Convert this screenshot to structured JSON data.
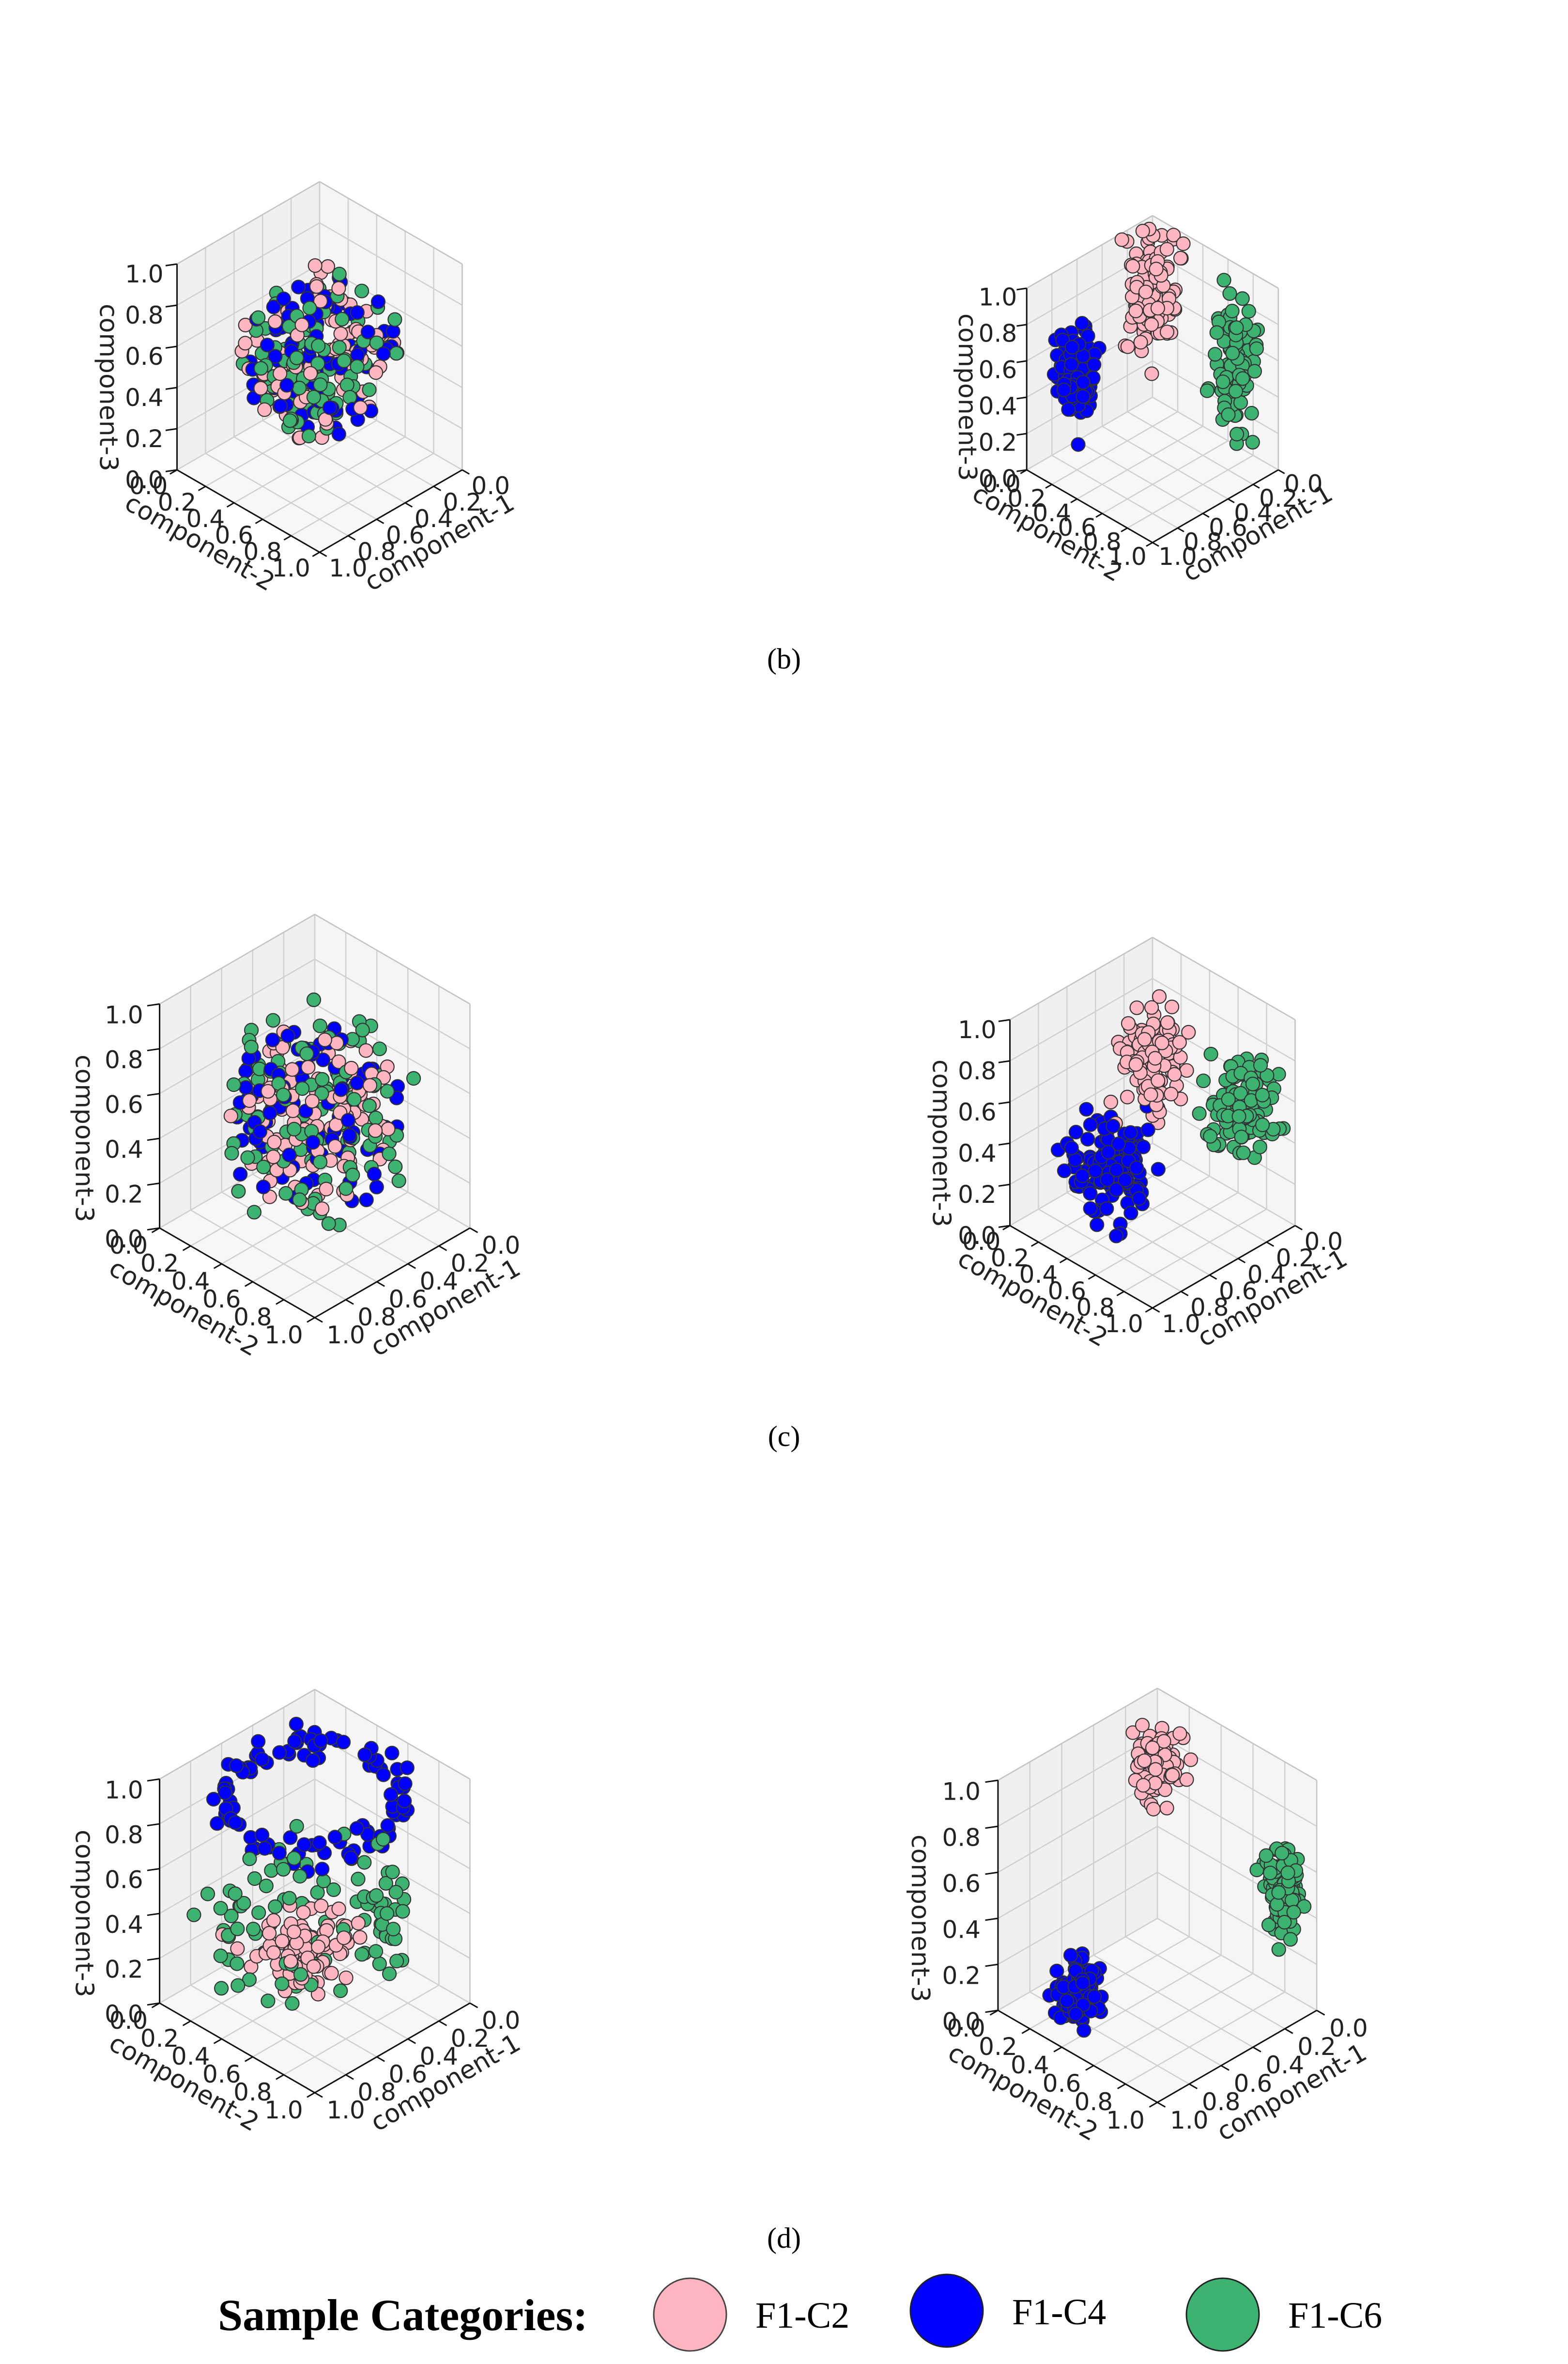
{
  "legend": {
    "title": "Sample Categories:",
    "items": [
      {
        "label": "F1-C2",
        "color": "#ffb6c1"
      },
      {
        "label": "F1-C4",
        "color": "#0000ff"
      },
      {
        "label": "F1-C6",
        "color": "#3cb371"
      }
    ]
  },
  "captions": {
    "b": "(b)",
    "c": "(c)",
    "d": "(d)"
  },
  "axis_text": {
    "x": "component-1",
    "y": "component-2",
    "z": "component-3",
    "ticks": [
      "0.0",
      "0.2",
      "0.4",
      "0.6",
      "0.8",
      "1.0"
    ]
  },
  "chart_data": [
    {
      "type": "scatter",
      "panel": "b-left",
      "xlabel": "component-1",
      "ylabel": "component-2",
      "zlabel": "component-3",
      "xlim": [
        0,
        1
      ],
      "ylim": [
        0,
        1
      ],
      "zlim": [
        0,
        1
      ],
      "series": [
        {
          "name": "F1-C2",
          "color": "#ffb6c1",
          "n": 90,
          "cluster": {
            "shape": "sphere",
            "center": [
              0.5,
              0.5,
              0.55
            ],
            "radius": 0.42
          }
        },
        {
          "name": "F1-C4",
          "color": "#0000ff",
          "n": 90,
          "cluster": {
            "shape": "sphere",
            "center": [
              0.5,
              0.5,
              0.55
            ],
            "radius": 0.42
          }
        },
        {
          "name": "F1-C6",
          "color": "#3cb371",
          "n": 90,
          "cluster": {
            "shape": "sphere",
            "center": [
              0.5,
              0.5,
              0.55
            ],
            "radius": 0.42
          }
        }
      ]
    },
    {
      "type": "scatter",
      "panel": "b-right",
      "xlabel": "component-1",
      "ylabel": "component-2",
      "zlabel": "component-3",
      "xlim": [
        0,
        1
      ],
      "ylim": [
        0,
        1
      ],
      "zlim": [
        0,
        1
      ],
      "series": [
        {
          "name": "F1-C2",
          "color": "#ffb6c1",
          "n": 110,
          "cluster": {
            "shape": "blob",
            "center": [
              0.15,
              0.15,
              0.7
            ],
            "spread": [
              0.07,
              0.07,
              0.17
            ]
          }
        },
        {
          "name": "F1-C4",
          "color": "#0000ff",
          "n": 100,
          "cluster": {
            "shape": "blob",
            "center": [
              0.75,
              0.15,
              0.5
            ],
            "spread": [
              0.06,
              0.06,
              0.12
            ]
          }
        },
        {
          "name": "F1-C6",
          "color": "#3cb371",
          "n": 100,
          "cluster": {
            "shape": "blob",
            "center": [
              0.15,
              0.8,
              0.55
            ],
            "spread": [
              0.06,
              0.06,
              0.17
            ]
          }
        }
      ]
    },
    {
      "type": "scatter",
      "panel": "c-left",
      "xlabel": "component-1",
      "ylabel": "component-2",
      "zlabel": "component-3",
      "xlim": [
        0,
        1
      ],
      "ylim": [
        0,
        1
      ],
      "zlim": [
        0,
        1
      ],
      "series": [
        {
          "name": "F1-C2",
          "color": "#ffb6c1",
          "n": 100,
          "cluster": {
            "shape": "sphere",
            "center": [
              0.45,
              0.45,
              0.45
            ],
            "radius": 0.42
          }
        },
        {
          "name": "F1-C4",
          "color": "#0000ff",
          "n": 95,
          "cluster": {
            "shape": "sphere",
            "center": [
              0.45,
              0.45,
              0.45
            ],
            "radius": 0.42
          }
        },
        {
          "name": "F1-C6",
          "color": "#3cb371",
          "n": 110,
          "cluster": {
            "shape": "sphere",
            "center": [
              0.45,
              0.45,
              0.45
            ],
            "radius": 0.5
          }
        }
      ]
    },
    {
      "type": "scatter",
      "panel": "c-right",
      "xlabel": "component-1",
      "ylabel": "component-2",
      "zlabel": "component-3",
      "xlim": [
        0,
        1
      ],
      "ylim": [
        0,
        1
      ],
      "zlim": [
        0,
        1
      ],
      "series": [
        {
          "name": "F1-C2",
          "color": "#ffb6c1",
          "n": 110,
          "cluster": {
            "shape": "blob",
            "center": [
              0.25,
              0.25,
              0.6
            ],
            "spread": [
              0.08,
              0.08,
              0.13
            ]
          }
        },
        {
          "name": "F1-C4",
          "color": "#0000ff",
          "n": 130,
          "cluster": {
            "shape": "blob",
            "center": [
              0.7,
              0.4,
              0.3
            ],
            "spread": [
              0.1,
              0.1,
              0.1
            ]
          }
        },
        {
          "name": "F1-C6",
          "color": "#3cb371",
          "n": 110,
          "cluster": {
            "shape": "blob",
            "center": [
              0.2,
              0.85,
              0.6
            ],
            "spread": [
              0.1,
              0.07,
              0.12
            ]
          }
        }
      ]
    },
    {
      "type": "scatter",
      "panel": "d-left",
      "xlabel": "component-1",
      "ylabel": "component-2",
      "zlabel": "component-3",
      "xlim": [
        0,
        1
      ],
      "ylim": [
        0,
        1
      ],
      "zlim": [
        0,
        1
      ],
      "series": [
        {
          "name": "F1-C2",
          "color": "#ffb6c1",
          "n": 100,
          "cluster": {
            "shape": "blob",
            "center": [
              0.5,
              0.45,
              0.22
            ],
            "spread": [
              0.12,
              0.12,
              0.06
            ]
          }
        },
        {
          "name": "F1-C4",
          "color": "#0000ff",
          "n": 110,
          "cluster": {
            "shape": "ring",
            "center": [
              0.5,
              0.5,
              0.92
            ],
            "radius": 0.42,
            "spread": 0.04
          }
        },
        {
          "name": "F1-C6",
          "color": "#3cb371",
          "n": 100,
          "cluster": {
            "shape": "ring",
            "center": [
              0.5,
              0.5,
              0.4
            ],
            "radius": 0.38,
            "spread": 0.12
          }
        }
      ]
    },
    {
      "type": "scatter",
      "panel": "d-right",
      "xlabel": "component-1",
      "ylabel": "component-2",
      "zlabel": "component-3",
      "xlim": [
        0,
        1
      ],
      "ylim": [
        0,
        1
      ],
      "zlim": [
        0,
        1
      ],
      "series": [
        {
          "name": "F1-C2",
          "color": "#ffb6c1",
          "n": 110,
          "cluster": {
            "shape": "blob",
            "center": [
              0.1,
              0.1,
              0.75
            ],
            "spread": [
              0.05,
              0.05,
              0.07
            ]
          }
        },
        {
          "name": "F1-C4",
          "color": "#0000ff",
          "n": 130,
          "cluster": {
            "shape": "blob",
            "center": [
              0.75,
              0.25,
              0.08
            ],
            "spread": [
              0.05,
              0.05,
              0.06
            ]
          }
        },
        {
          "name": "F1-C6",
          "color": "#3cb371",
          "n": 110,
          "cluster": {
            "shape": "blob",
            "center": [
              0.05,
              0.85,
              0.48
            ],
            "spread": [
              0.04,
              0.04,
              0.1
            ]
          }
        }
      ]
    }
  ]
}
